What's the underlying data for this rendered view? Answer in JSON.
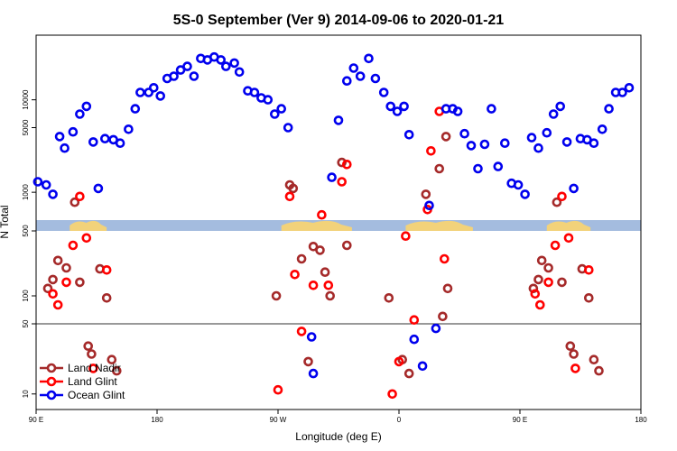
{
  "chart_data": {
    "type": "scatter",
    "title": "5S-0 September (Ver 9)   2014-09-06 to 2020-01-21",
    "xlabel": "Longitude (deg E)",
    "ylabel": "N Total",
    "xlim": [
      0,
      360
    ],
    "x_ticks": [
      {
        "value": 0,
        "label": "90 E"
      },
      {
        "value": 72,
        "label": "180"
      },
      {
        "value": 144,
        "label": "90 W"
      },
      {
        "value": 216,
        "label": "0"
      },
      {
        "value": 288,
        "label": "90 E"
      },
      {
        "value": 360,
        "label": "180"
      }
    ],
    "y_ticks": [
      {
        "label": "10",
        "value": 10,
        "panel": "lower"
      },
      {
        "label": "50",
        "value": 50,
        "panel": "lower"
      },
      {
        "label": "100",
        "value": 100,
        "panel": "mid"
      },
      {
        "label": "500",
        "value": 500,
        "panel": "mid"
      },
      {
        "label": "1000",
        "value": 1000,
        "panel": "upper"
      },
      {
        "label": "5000",
        "value": 5000,
        "panel": "upper"
      },
      {
        "label": "10000",
        "value": 10000,
        "panel": "upper"
      }
    ],
    "panels": {
      "upper": {
        "ylim": [
          500,
          50000
        ],
        "scale": "log"
      },
      "mid": {
        "ylim": [
          50,
          500
        ],
        "scale": "log"
      },
      "lower": {
        "ylim": [
          7,
          50
        ],
        "scale": "log"
      }
    },
    "band_color": "#a4bcdf",
    "land_color": "#f2d27a",
    "legend_position": "bottom-left",
    "series": [
      {
        "name": "Land Nadir",
        "color": "#a52a2a",
        "points": [
          {
            "x": 7,
            "y": 120,
            "p": "mid"
          },
          {
            "x": 10,
            "y": 150,
            "p": "mid"
          },
          {
            "x": 13,
            "y": 240,
            "p": "mid"
          },
          {
            "x": 18,
            "y": 200,
            "p": "mid"
          },
          {
            "x": 23,
            "y": 780,
            "p": "upper"
          },
          {
            "x": 26,
            "y": 140,
            "p": "mid"
          },
          {
            "x": 31,
            "y": 30,
            "p": "lower"
          },
          {
            "x": 33,
            "y": 25,
            "p": "lower"
          },
          {
            "x": 38,
            "y": 195,
            "p": "mid"
          },
          {
            "x": 42,
            "y": 95,
            "p": "mid"
          },
          {
            "x": 45,
            "y": 22,
            "p": "lower"
          },
          {
            "x": 48,
            "y": 17,
            "p": "lower"
          },
          {
            "x": 143,
            "y": 100,
            "p": "mid"
          },
          {
            "x": 151,
            "y": 1200,
            "p": "upper"
          },
          {
            "x": 153,
            "y": 1100,
            "p": "upper"
          },
          {
            "x": 158,
            "y": 250,
            "p": "mid"
          },
          {
            "x": 162,
            "y": 21,
            "p": "lower"
          },
          {
            "x": 165,
            "y": 340,
            "p": "mid"
          },
          {
            "x": 169,
            "y": 310,
            "p": "mid"
          },
          {
            "x": 172,
            "y": 180,
            "p": "mid"
          },
          {
            "x": 175,
            "y": 100,
            "p": "mid"
          },
          {
            "x": 182,
            "y": 2100,
            "p": "upper"
          },
          {
            "x": 185,
            "y": 350,
            "p": "mid"
          },
          {
            "x": 210,
            "y": 95,
            "p": "mid"
          },
          {
            "x": 218,
            "y": 22,
            "p": "lower"
          },
          {
            "x": 222,
            "y": 16,
            "p": "lower"
          },
          {
            "x": 232,
            "y": 950,
            "p": "upper"
          },
          {
            "x": 242,
            "y": 60,
            "p": "mid"
          },
          {
            "x": 240,
            "y": 1800,
            "p": "upper"
          },
          {
            "x": 244,
            "y": 4000,
            "p": "upper"
          },
          {
            "x": 245,
            "y": 120,
            "p": "mid"
          },
          {
            "x": 296,
            "y": 120,
            "p": "mid"
          },
          {
            "x": 299,
            "y": 150,
            "p": "mid"
          },
          {
            "x": 301,
            "y": 240,
            "p": "mid"
          },
          {
            "x": 305,
            "y": 200,
            "p": "mid"
          },
          {
            "x": 310,
            "y": 780,
            "p": "upper"
          },
          {
            "x": 313,
            "y": 140,
            "p": "mid"
          },
          {
            "x": 318,
            "y": 30,
            "p": "lower"
          },
          {
            "x": 320,
            "y": 25,
            "p": "lower"
          },
          {
            "x": 325,
            "y": 195,
            "p": "mid"
          },
          {
            "x": 329,
            "y": 95,
            "p": "mid"
          },
          {
            "x": 332,
            "y": 22,
            "p": "lower"
          },
          {
            "x": 335,
            "y": 17,
            "p": "lower"
          }
        ]
      },
      {
        "name": "Land Glint",
        "color": "#ff0000",
        "points": [
          {
            "x": 10,
            "y": 105,
            "p": "mid"
          },
          {
            "x": 13,
            "y": 80,
            "p": "mid"
          },
          {
            "x": 18,
            "y": 140,
            "p": "mid"
          },
          {
            "x": 22,
            "y": 350,
            "p": "mid"
          },
          {
            "x": 26,
            "y": 900,
            "p": "upper"
          },
          {
            "x": 30,
            "y": 420,
            "p": "mid"
          },
          {
            "x": 34,
            "y": 18,
            "p": "lower"
          },
          {
            "x": 42,
            "y": 190,
            "p": "mid"
          },
          {
            "x": 144,
            "y": 11,
            "p": "lower"
          },
          {
            "x": 151,
            "y": 900,
            "p": "upper"
          },
          {
            "x": 154,
            "y": 170,
            "p": "mid"
          },
          {
            "x": 158,
            "y": 42,
            "p": "lower"
          },
          {
            "x": 165,
            "y": 130,
            "p": "mid"
          },
          {
            "x": 170,
            "y": 570,
            "p": "upper"
          },
          {
            "x": 174,
            "y": 130,
            "p": "mid"
          },
          {
            "x": 182,
            "y": 1300,
            "p": "upper"
          },
          {
            "x": 185,
            "y": 2000,
            "p": "upper"
          },
          {
            "x": 212,
            "y": 10,
            "p": "lower"
          },
          {
            "x": 216,
            "y": 21,
            "p": "lower"
          },
          {
            "x": 220,
            "y": 440,
            "p": "mid"
          },
          {
            "x": 225,
            "y": 55,
            "p": "mid"
          },
          {
            "x": 233,
            "y": 650,
            "p": "upper"
          },
          {
            "x": 235,
            "y": 2800,
            "p": "upper"
          },
          {
            "x": 240,
            "y": 7500,
            "p": "upper"
          },
          {
            "x": 243,
            "y": 250,
            "p": "mid"
          },
          {
            "x": 297,
            "y": 105,
            "p": "mid"
          },
          {
            "x": 300,
            "y": 80,
            "p": "mid"
          },
          {
            "x": 305,
            "y": 140,
            "p": "mid"
          },
          {
            "x": 309,
            "y": 350,
            "p": "mid"
          },
          {
            "x": 313,
            "y": 900,
            "p": "upper"
          },
          {
            "x": 317,
            "y": 420,
            "p": "mid"
          },
          {
            "x": 321,
            "y": 18,
            "p": "lower"
          },
          {
            "x": 329,
            "y": 190,
            "p": "mid"
          }
        ]
      },
      {
        "name": "Ocean Glint",
        "color": "#0000ee",
        "points": [
          {
            "x": 1,
            "y": 1300,
            "p": "upper"
          },
          {
            "x": 6,
            "y": 1200,
            "p": "upper"
          },
          {
            "x": 10,
            "y": 950,
            "p": "upper"
          },
          {
            "x": 14,
            "y": 4000,
            "p": "upper"
          },
          {
            "x": 17,
            "y": 3000,
            "p": "upper"
          },
          {
            "x": 22,
            "y": 4500,
            "p": "upper"
          },
          {
            "x": 26,
            "y": 7000,
            "p": "upper"
          },
          {
            "x": 30,
            "y": 8500,
            "p": "upper"
          },
          {
            "x": 34,
            "y": 3500,
            "p": "upper"
          },
          {
            "x": 37,
            "y": 1100,
            "p": "upper"
          },
          {
            "x": 41,
            "y": 3800,
            "p": "upper"
          },
          {
            "x": 46,
            "y": 3700,
            "p": "upper"
          },
          {
            "x": 50,
            "y": 3400,
            "p": "upper"
          },
          {
            "x": 55,
            "y": 4800,
            "p": "upper"
          },
          {
            "x": 59,
            "y": 8000,
            "p": "upper"
          },
          {
            "x": 62,
            "y": 12000,
            "p": "upper"
          },
          {
            "x": 67,
            "y": 12000,
            "p": "upper"
          },
          {
            "x": 70,
            "y": 13500,
            "p": "upper"
          },
          {
            "x": 74,
            "y": 11000,
            "p": "upper"
          },
          {
            "x": 78,
            "y": 17000,
            "p": "upper"
          },
          {
            "x": 82,
            "y": 18000,
            "p": "upper"
          },
          {
            "x": 86,
            "y": 21000,
            "p": "upper"
          },
          {
            "x": 90,
            "y": 23000,
            "p": "upper"
          },
          {
            "x": 94,
            "y": 18000,
            "p": "upper"
          },
          {
            "x": 98,
            "y": 28000,
            "p": "upper"
          },
          {
            "x": 102,
            "y": 27000,
            "p": "upper"
          },
          {
            "x": 106,
            "y": 29000,
            "p": "upper"
          },
          {
            "x": 110,
            "y": 27000,
            "p": "upper"
          },
          {
            "x": 113,
            "y": 23000,
            "p": "upper"
          },
          {
            "x": 118,
            "y": 25000,
            "p": "upper"
          },
          {
            "x": 121,
            "y": 20000,
            "p": "upper"
          },
          {
            "x": 126,
            "y": 12500,
            "p": "upper"
          },
          {
            "x": 130,
            "y": 12000,
            "p": "upper"
          },
          {
            "x": 134,
            "y": 10500,
            "p": "upper"
          },
          {
            "x": 138,
            "y": 10000,
            "p": "upper"
          },
          {
            "x": 142,
            "y": 7000,
            "p": "upper"
          },
          {
            "x": 146,
            "y": 8000,
            "p": "upper"
          },
          {
            "x": 150,
            "y": 5000,
            "p": "upper"
          },
          {
            "x": 164,
            "y": 37,
            "p": "lower"
          },
          {
            "x": 165,
            "y": 16,
            "p": "lower"
          },
          {
            "x": 176,
            "y": 1450,
            "p": "upper"
          },
          {
            "x": 180,
            "y": 6000,
            "p": "upper"
          },
          {
            "x": 185,
            "y": 16000,
            "p": "upper"
          },
          {
            "x": 189,
            "y": 22000,
            "p": "upper"
          },
          {
            "x": 193,
            "y": 18000,
            "p": "upper"
          },
          {
            "x": 198,
            "y": 28000,
            "p": "upper"
          },
          {
            "x": 202,
            "y": 17000,
            "p": "upper"
          },
          {
            "x": 207,
            "y": 12000,
            "p": "upper"
          },
          {
            "x": 211,
            "y": 8500,
            "p": "upper"
          },
          {
            "x": 215,
            "y": 7500,
            "p": "upper"
          },
          {
            "x": 219,
            "y": 8500,
            "p": "upper"
          },
          {
            "x": 222,
            "y": 4200,
            "p": "upper"
          },
          {
            "x": 225,
            "y": 35,
            "p": "lower"
          },
          {
            "x": 230,
            "y": 19,
            "p": "lower"
          },
          {
            "x": 234,
            "y": 720,
            "p": "upper"
          },
          {
            "x": 238,
            "y": 45,
            "p": "lower"
          },
          {
            "x": 244,
            "y": 8000,
            "p": "upper"
          },
          {
            "x": 248,
            "y": 8000,
            "p": "upper"
          },
          {
            "x": 251,
            "y": 7500,
            "p": "upper"
          },
          {
            "x": 255,
            "y": 4300,
            "p": "upper"
          },
          {
            "x": 259,
            "y": 3200,
            "p": "upper"
          },
          {
            "x": 263,
            "y": 1800,
            "p": "upper"
          },
          {
            "x": 267,
            "y": 3300,
            "p": "upper"
          },
          {
            "x": 271,
            "y": 8000,
            "p": "upper"
          },
          {
            "x": 275,
            "y": 1900,
            "p": "upper"
          },
          {
            "x": 279,
            "y": 3400,
            "p": "upper"
          },
          {
            "x": 283,
            "y": 1250,
            "p": "upper"
          },
          {
            "x": 287,
            "y": 1200,
            "p": "upper"
          },
          {
            "x": 291,
            "y": 950,
            "p": "upper"
          },
          {
            "x": 295,
            "y": 3900,
            "p": "upper"
          },
          {
            "x": 299,
            "y": 3000,
            "p": "upper"
          },
          {
            "x": 304,
            "y": 4400,
            "p": "upper"
          },
          {
            "x": 308,
            "y": 7000,
            "p": "upper"
          },
          {
            "x": 312,
            "y": 8500,
            "p": "upper"
          },
          {
            "x": 316,
            "y": 3500,
            "p": "upper"
          },
          {
            "x": 320,
            "y": 1100,
            "p": "upper"
          },
          {
            "x": 324,
            "y": 3800,
            "p": "upper"
          },
          {
            "x": 328,
            "y": 3700,
            "p": "upper"
          },
          {
            "x": 332,
            "y": 3400,
            "p": "upper"
          },
          {
            "x": 337,
            "y": 4800,
            "p": "upper"
          },
          {
            "x": 341,
            "y": 8000,
            "p": "upper"
          },
          {
            "x": 345,
            "y": 12000,
            "p": "upper"
          },
          {
            "x": 349,
            "y": 12000,
            "p": "upper"
          },
          {
            "x": 353,
            "y": 13500,
            "p": "upper"
          }
        ]
      }
    ]
  }
}
